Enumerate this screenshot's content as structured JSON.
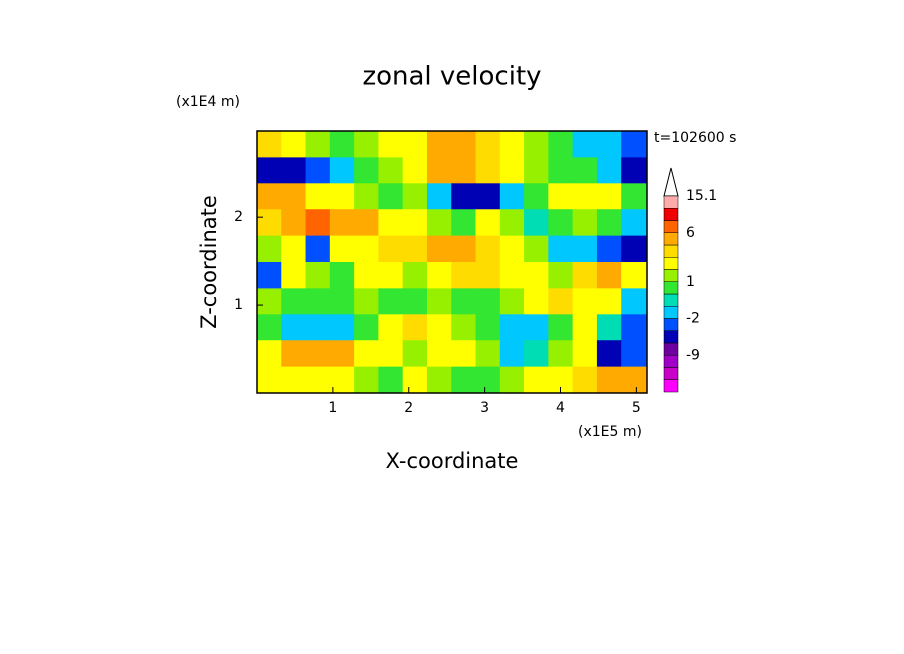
{
  "chart_data": {
    "type": "contour",
    "title": "zonal velocity",
    "x_unit": "(x1E5 m)",
    "y_unit": "(x1E4 m)",
    "annotation": "t=102600 s",
    "xlabel": "X-coordinate",
    "ylabel": "Z-coordinate",
    "xlim": [
      0,
      5.14
    ],
    "ylim": [
      0,
      2.98
    ],
    "xticks": [
      1,
      2,
      3,
      4,
      5
    ],
    "yticks": [
      1,
      2
    ],
    "x": [
      0.16,
      0.48,
      0.8,
      1.12,
      1.44,
      1.76,
      2.08,
      2.4,
      2.72,
      3.04,
      3.36,
      3.68,
      4.0,
      4.32,
      4.64,
      4.96
    ],
    "y": [
      2.83,
      2.53,
      2.24,
      1.94,
      1.64,
      1.34,
      1.04,
      0.75,
      0.45,
      0.15
    ],
    "z": [
      [
        3,
        2,
        1,
        0.5,
        1,
        2,
        2.5,
        4,
        4.5,
        3,
        2.5,
        1,
        0.5,
        -1.5,
        -2,
        -3
      ],
      [
        -5,
        -5,
        -4,
        -1.5,
        0.5,
        1,
        2.5,
        4,
        5,
        3,
        2,
        1.5,
        0.5,
        0.5,
        -1.5,
        -5
      ],
      [
        5,
        4,
        2.5,
        2,
        1,
        0.5,
        1,
        -2,
        -5,
        -5,
        -1.5,
        0.5,
        2,
        2.5,
        2,
        0.5
      ],
      [
        3,
        5,
        6,
        5,
        4,
        2.5,
        2,
        1,
        0.5,
        2,
        1,
        -1,
        0.5,
        1,
        0.5,
        -1.5
      ],
      [
        1,
        2.5,
        -4,
        2,
        2.5,
        3,
        3,
        4,
        5,
        3.5,
        2,
        1,
        -1.5,
        -2,
        -3,
        -5
      ],
      [
        -4,
        2.5,
        1,
        0.5,
        2,
        2,
        1,
        2.5,
        3,
        3.5,
        2.5,
        2,
        1,
        3,
        4,
        2
      ],
      [
        1,
        0.5,
        0.5,
        0.5,
        1,
        0.5,
        0.5,
        1,
        0.5,
        0.5,
        1,
        2.5,
        3,
        2.5,
        2,
        -1.5
      ],
      [
        0.5,
        -1.5,
        -1.5,
        -1.5,
        0.5,
        2.5,
        3,
        2.5,
        1,
        0.5,
        -1.5,
        -1.5,
        0.5,
        2.5,
        -1,
        -3
      ],
      [
        2.5,
        4,
        5,
        4,
        2.5,
        2.5,
        1,
        2.5,
        2.5,
        1,
        -1.5,
        -1,
        1.5,
        2,
        -5,
        -3
      ],
      [
        2,
        2.5,
        2,
        2.5,
        1,
        0.5,
        2.5,
        1,
        0.5,
        0.5,
        1,
        2,
        2.5,
        3,
        5,
        4
      ]
    ],
    "colorbar": {
      "levels": [
        -20,
        -15,
        -12,
        -9,
        -6,
        -4,
        -2,
        -1,
        0,
        1,
        2,
        3,
        4,
        6,
        9,
        12,
        15.1
      ],
      "colors": [
        "#ff00ff",
        "#c800c8",
        "#a000c8",
        "#6e00a0",
        "#0000b4",
        "#0050ff",
        "#00c8ff",
        "#00dcb4",
        "#32e632",
        "#96f000",
        "#ffff00",
        "#ffdc00",
        "#ffaa00",
        "#ff6400",
        "#f00000",
        "#ffaaaa"
      ],
      "ticks": [
        -9,
        -2,
        1,
        6,
        15.1
      ]
    }
  }
}
